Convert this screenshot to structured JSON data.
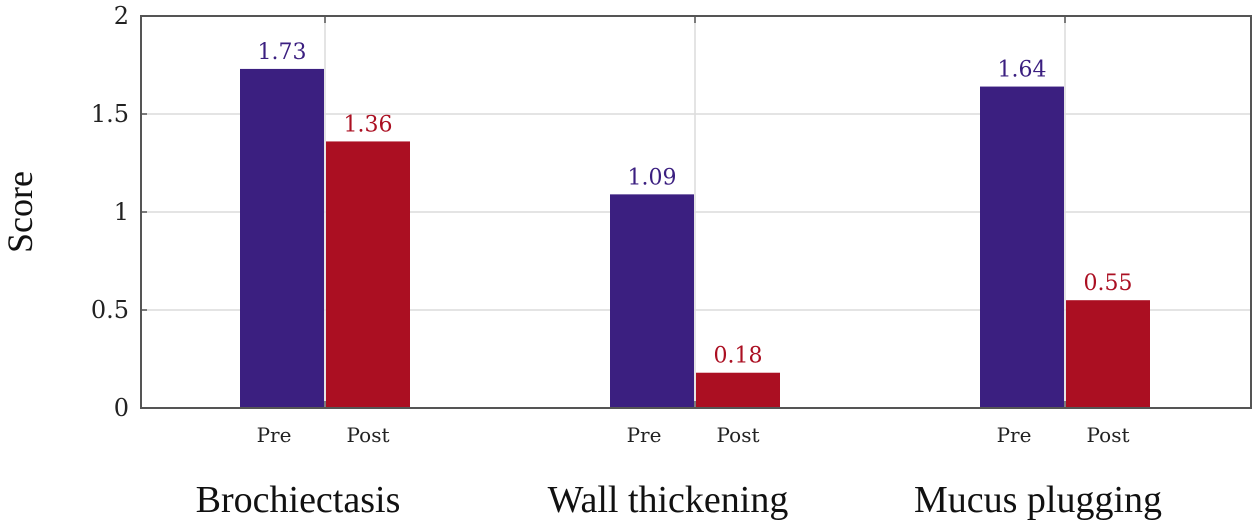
{
  "chart_data": {
    "type": "bar",
    "ylabel": "Score",
    "ylim": [
      0,
      2
    ],
    "yticks": [
      "0",
      "0.5",
      "1",
      "1.5",
      "2"
    ],
    "grid": true,
    "categories": [
      "Brochiectasis",
      "Wall thickening",
      "Mucus plugging"
    ],
    "sub_labels": [
      "Pre",
      "Post"
    ],
    "series": [
      {
        "values": [
          1.73,
          1.09,
          1.64
        ],
        "labels": [
          "1.73",
          "1.09",
          "1.64"
        ],
        "color": "#3b1f80"
      },
      {
        "values": [
          1.36,
          0.18,
          0.55
        ],
        "labels": [
          "1.36",
          "0.18",
          "0.55"
        ],
        "color": "#ab0f22"
      }
    ]
  }
}
